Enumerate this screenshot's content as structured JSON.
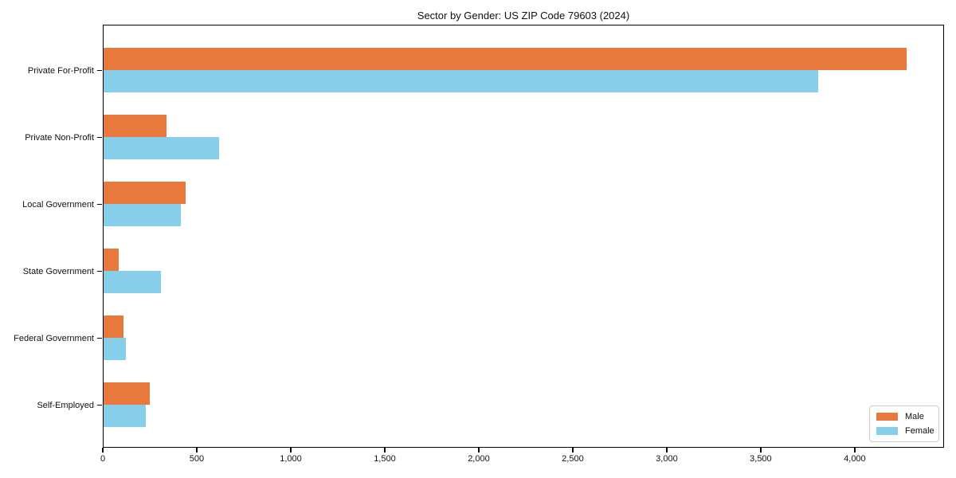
{
  "chart_data": {
    "type": "bar",
    "orientation": "horizontal",
    "title": "Sector by Gender: US ZIP Code 79603 (2024)",
    "categories": [
      "Private For-Profit",
      "Private Non-Profit",
      "Local Government",
      "State Government",
      "Federal Government",
      "Self-Employed"
    ],
    "series": [
      {
        "name": "Male",
        "color": "#E8793C",
        "values": [
          4270,
          335,
          435,
          80,
          105,
          245
        ]
      },
      {
        "name": "Female",
        "color": "#87CEEB",
        "values": [
          3800,
          615,
          410,
          305,
          120,
          225
        ]
      }
    ],
    "xlabel": "",
    "ylabel": "",
    "xlim": [
      0,
      4475
    ],
    "xticks": [
      0,
      500,
      1000,
      1500,
      2000,
      2500,
      3000,
      3500,
      4000
    ],
    "xtick_labels": [
      "0",
      "500",
      "1,000",
      "1,500",
      "2,000",
      "2,500",
      "3,000",
      "3,500",
      "4,000"
    ],
    "grid": false,
    "legend": {
      "position": "lower right"
    }
  }
}
